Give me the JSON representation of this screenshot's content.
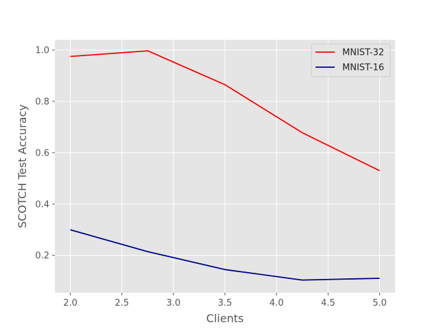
{
  "chart_data": {
    "type": "line",
    "title": "",
    "xlabel": "Clients",
    "ylabel": "SCOTCH Test Accuracy",
    "x": [
      2.0,
      2.75,
      3.5,
      4.25,
      5.0
    ],
    "series": [
      {
        "name": "MNIST-32",
        "color": "#ff0000",
        "values": [
          0.975,
          0.997,
          0.865,
          0.678,
          0.53
        ]
      },
      {
        "name": "MNIST-16",
        "color": "#00008b",
        "values": [
          0.3,
          0.215,
          0.145,
          0.104,
          0.111
        ]
      }
    ],
    "xlim": [
      1.85,
      5.15
    ],
    "ylim": [
      0.055,
      1.04
    ],
    "xticks": [
      2.0,
      2.5,
      3.0,
      3.5,
      4.0,
      4.5,
      5.0
    ],
    "xtick_labels": [
      "2.0",
      "2.5",
      "3.0",
      "3.5",
      "4.0",
      "4.5",
      "5.0"
    ],
    "yticks": [
      0.2,
      0.4,
      0.6,
      0.8,
      1.0
    ],
    "ytick_labels": [
      "0.2",
      "0.4",
      "0.6",
      "0.8",
      "1.0"
    ],
    "grid": true,
    "legend_position": "top-right",
    "background_color": "#e5e5e5",
    "grid_color": "#ffffff"
  }
}
